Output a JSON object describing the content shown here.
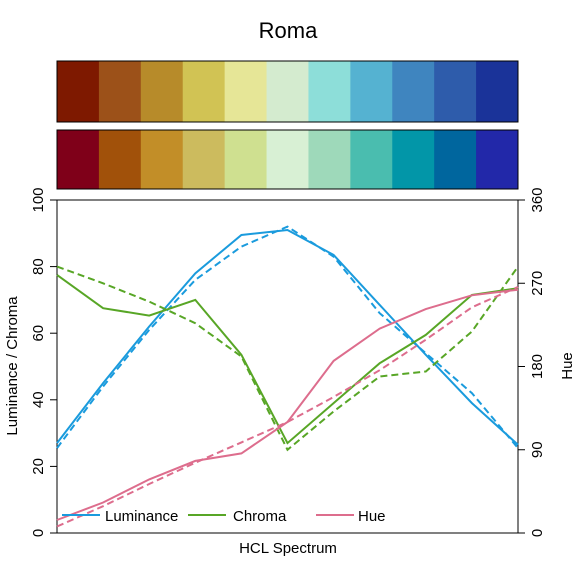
{
  "chart_data": {
    "type": "line",
    "title": "Roma",
    "xlabel": "HCL Spectrum",
    "ylabel_left": "Luminance / Chroma",
    "ylabel_right": "Hue",
    "ylim_left": [
      0,
      100
    ],
    "ylim_right": [
      0,
      360
    ],
    "yticks_left": [
      "0",
      "20",
      "40",
      "60",
      "80",
      "100"
    ],
    "yticks_right": [
      "0",
      "90",
      "180",
      "270",
      "360"
    ],
    "n": 11,
    "swatches_top": [
      "#7E1900",
      "#9C5119",
      "#B78B2A",
      "#D1C354",
      "#E6E697",
      "#D4EBCF",
      "#8DDED9",
      "#55B2D1",
      "#3F85BF",
      "#2E5CAB",
      "#1A3399"
    ],
    "swatches_bottom": [
      "#7F0019",
      "#A1510A",
      "#C28E28",
      "#CCBB5E",
      "#CFE090",
      "#D8F0D4",
      "#9ED9BA",
      "#4ABDAF",
      "#0296A8",
      "#00669E",
      "#2228A9"
    ],
    "series": [
      {
        "name": "Luminance",
        "color": "#1A9BDD",
        "axis": "left",
        "values": [
          27,
          45,
          62,
          78,
          89.5,
          91,
          83.5,
          68.5,
          53.5,
          39,
          26.5
        ],
        "fitted": [
          25.5,
          44,
          61,
          76,
          86,
          92,
          83,
          66,
          54,
          42,
          25.5
        ]
      },
      {
        "name": "Chroma",
        "color": "#58A626",
        "axis": "left",
        "values": [
          77.5,
          67.5,
          65.3,
          70,
          53.5,
          27,
          39,
          51,
          59.5,
          71.5,
          73.5
        ],
        "fitted": [
          80,
          75,
          69.5,
          63,
          53,
          25,
          36.5,
          47,
          48.5,
          60.5,
          80
        ]
      },
      {
        "name": "Hue",
        "color": "#DD6D8D",
        "axis": "right",
        "values": [
          14,
          33,
          58,
          78,
          86,
          120,
          186,
          221,
          242,
          257,
          263
        ],
        "fitted": [
          7,
          29,
          53,
          76,
          98,
          120,
          147,
          176,
          209,
          244,
          266
        ]
      }
    ],
    "legend_position": "bottom"
  }
}
